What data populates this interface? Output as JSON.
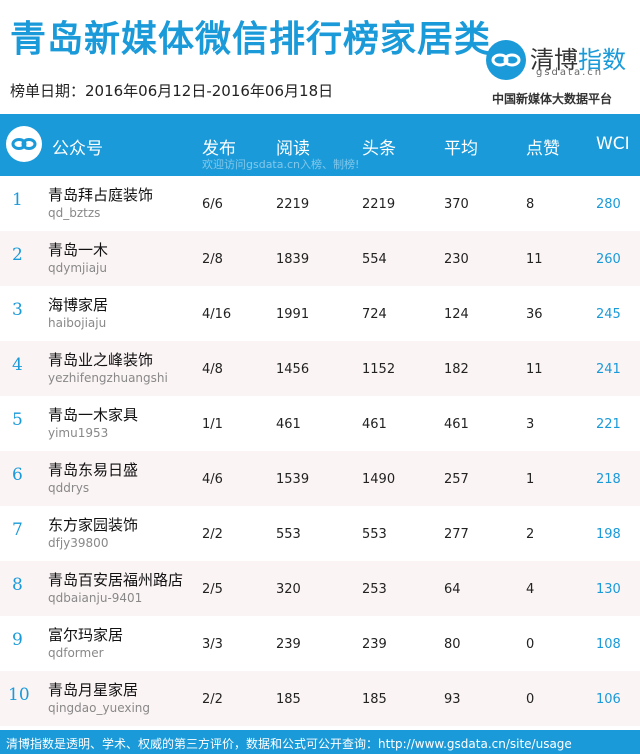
{
  "header": {
    "title": "青岛新媒体微信排行榜家居类",
    "date_label": "榜单日期：2016年06月12日-2016年06月18日",
    "brand_name_prefix": "清博",
    "brand_name_suffix": "指数",
    "brand_domain": "gsdata.cn",
    "brand_sub": "中国新媒体大数据平台"
  },
  "table": {
    "columns": [
      "公众号",
      "发布",
      "阅读",
      "头条",
      "平均",
      "点赞",
      "WCI"
    ],
    "watermark": "欢迎访问gsdata.cn入榜、制榜!",
    "rows": [
      {
        "rank": "1",
        "name": "青岛拜占庭装饰",
        "account": "qd_bztzs",
        "publish": "6/6",
        "reads": "2219",
        "headline": "2219",
        "avg": "370",
        "likes": "8",
        "wci": "280"
      },
      {
        "rank": "2",
        "name": "青岛一木",
        "account": "qdymjiaju",
        "publish": "2/8",
        "reads": "1839",
        "headline": "554",
        "avg": "230",
        "likes": "11",
        "wci": "260"
      },
      {
        "rank": "3",
        "name": "海博家居",
        "account": "haibojiaju",
        "publish": "4/16",
        "reads": "1991",
        "headline": "724",
        "avg": "124",
        "likes": "36",
        "wci": "245"
      },
      {
        "rank": "4",
        "name": "青岛业之峰装饰",
        "account": "yezhifengzhuangshi",
        "publish": "4/8",
        "reads": "1456",
        "headline": "1152",
        "avg": "182",
        "likes": "11",
        "wci": "241"
      },
      {
        "rank": "5",
        "name": "青岛一木家具",
        "account": "yimu1953",
        "publish": "1/1",
        "reads": "461",
        "headline": "461",
        "avg": "461",
        "likes": "3",
        "wci": "221"
      },
      {
        "rank": "6",
        "name": "青岛东易日盛",
        "account": "qddrys",
        "publish": "4/6",
        "reads": "1539",
        "headline": "1490",
        "avg": "257",
        "likes": "1",
        "wci": "218"
      },
      {
        "rank": "7",
        "name": "东方家园装饰",
        "account": "dfjy39800",
        "publish": "2/2",
        "reads": "553",
        "headline": "553",
        "avg": "277",
        "likes": "2",
        "wci": "198"
      },
      {
        "rank": "8",
        "name": "青岛百安居福州路店",
        "account": "qdbaianju-9401",
        "publish": "2/5",
        "reads": "320",
        "headline": "253",
        "avg": "64",
        "likes": "4",
        "wci": "130"
      },
      {
        "rank": "9",
        "name": "富尔玛家居",
        "account": "qdformer",
        "publish": "3/3",
        "reads": "239",
        "headline": "239",
        "avg": "80",
        "likes": "0",
        "wci": "108"
      },
      {
        "rank": "10",
        "name": "青岛月星家居",
        "account": "qingdao_yuexing",
        "publish": "2/2",
        "reads": "185",
        "headline": "185",
        "avg": "93",
        "likes": "0",
        "wci": "106"
      }
    ]
  },
  "footer": {
    "text": "清博指数是透明、学术、权威的第三方评价，数据和公式可公开查询：http://www.gsdata.cn/site/usage"
  },
  "colors": {
    "accent": "#1a9ad9",
    "row_alt": "#fbf4f5"
  },
  "icons": {
    "brand_logo": "infinity-link-icon",
    "header_logo": "infinity-link-icon"
  }
}
